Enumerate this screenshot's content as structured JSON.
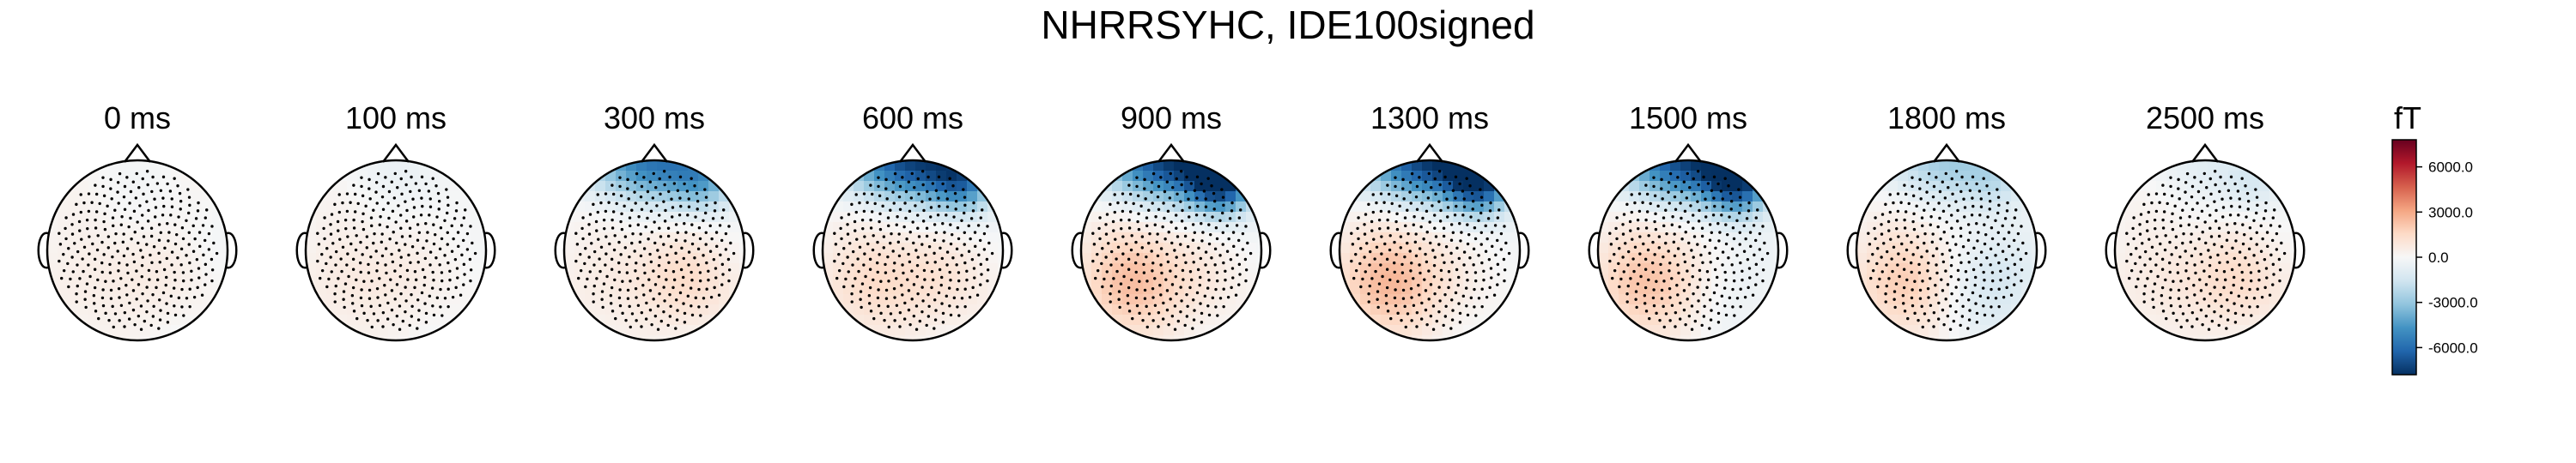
{
  "chart_data": {
    "type": "heatmap",
    "title": "NHRRSYHC, IDE100signed",
    "subplot_titles": [
      "0 ms",
      "100 ms",
      "300 ms",
      "600 ms",
      "900 ms",
      "1300 ms",
      "1500 ms",
      "1800 ms",
      "2500 ms"
    ],
    "topomaps": [
      {
        "time_ms": 0,
        "label": "0 ms",
        "field": {
          "front": 0,
          "left_back": 700,
          "right_back": 300,
          "right_front": 0
        }
      },
      {
        "time_ms": 100,
        "label": "100 ms",
        "field": {
          "front": -300,
          "left_back": 900,
          "right_back": 200,
          "right_front": -200
        }
      },
      {
        "time_ms": 300,
        "label": "300 ms",
        "field": {
          "front": -5500,
          "left_back": 800,
          "right_back": 1200,
          "right_front": -2500
        }
      },
      {
        "time_ms": 600,
        "label": "600 ms",
        "field": {
          "front": -7000,
          "left_back": 1600,
          "right_back": 800,
          "right_front": -4000
        }
      },
      {
        "time_ms": 900,
        "label": "900 ms",
        "field": {
          "front": -7200,
          "left_back": 2600,
          "right_back": 500,
          "right_front": -6500
        }
      },
      {
        "time_ms": 1300,
        "label": "1300 ms",
        "field": {
          "front": -7200,
          "left_back": 2800,
          "right_back": 200,
          "right_front": -6000
        }
      },
      {
        "time_ms": 1500,
        "label": "1500 ms",
        "field": {
          "front": -7000,
          "left_back": 2500,
          "right_back": -500,
          "right_front": -6000
        }
      },
      {
        "time_ms": 1800,
        "label": "1800 ms",
        "field": {
          "front": -2500,
          "left_back": 2200,
          "right_back": -1500,
          "right_front": -1200
        }
      },
      {
        "time_ms": 2500,
        "label": "2500 ms",
        "field": {
          "front": -600,
          "left_back": 900,
          "right_back": 1200,
          "right_front": -1200
        }
      }
    ],
    "colorbar": {
      "unit_label": "fT",
      "vmin": -7800,
      "vmax": 7800,
      "ticks": [
        6000,
        3000,
        0,
        -3000,
        -6000
      ],
      "tick_labels": [
        "6000.0",
        "3000.0",
        "0.0",
        "-3000.0",
        "-6000.0"
      ],
      "colormap": "RdBu_r",
      "colormap_stops": [
        "#053061",
        "#2166ac",
        "#4393c3",
        "#92c5de",
        "#d1e5f0",
        "#f7f7f7",
        "#fddbc7",
        "#f4a582",
        "#d6604d",
        "#b2182b",
        "#67001f"
      ]
    }
  }
}
